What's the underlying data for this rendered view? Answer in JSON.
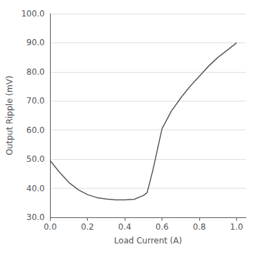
{
  "chart_data": {
    "type": "line",
    "x": [
      0.0,
      0.05,
      0.1,
      0.15,
      0.2,
      0.25,
      0.3,
      0.35,
      0.4,
      0.45,
      0.5,
      0.52,
      0.55,
      0.6,
      0.65,
      0.7,
      0.75,
      0.8,
      0.85,
      0.9,
      0.95,
      1.0
    ],
    "values": [
      49.5,
      45.5,
      42.0,
      39.5,
      37.8,
      36.8,
      36.3,
      36.0,
      36.0,
      36.2,
      37.5,
      38.5,
      46.0,
      60.5,
      66.5,
      71.0,
      75.0,
      78.5,
      82.0,
      85.0,
      87.5,
      90.0
    ],
    "xlabel": "Load Current (A)",
    "ylabel": "Output Ripple (mV)",
    "xlim": [
      0.0,
      1.05
    ],
    "ylim": [
      30.0,
      100.0
    ],
    "xticks": [
      {
        "value": 0.0,
        "label": "0.0"
      },
      0.2,
      0.4,
      0.6,
      0.8,
      {
        "value": 1.0,
        "label": "1.0"
      }
    ],
    "yticks": [
      {
        "value": 30.0,
        "label": "30.0"
      },
      {
        "value": 40.0,
        "label": "40.0"
      },
      {
        "value": 50.0,
        "label": "50.0"
      },
      {
        "value": 60.0,
        "label": "60.0"
      },
      {
        "value": 70.0,
        "label": "70.0"
      },
      {
        "value": 80.0,
        "label": "80.0"
      },
      {
        "value": 90.0,
        "label": "90.0"
      },
      {
        "value": 100.0,
        "label": "100.0"
      }
    ],
    "color": "#555555",
    "grid": true
  }
}
